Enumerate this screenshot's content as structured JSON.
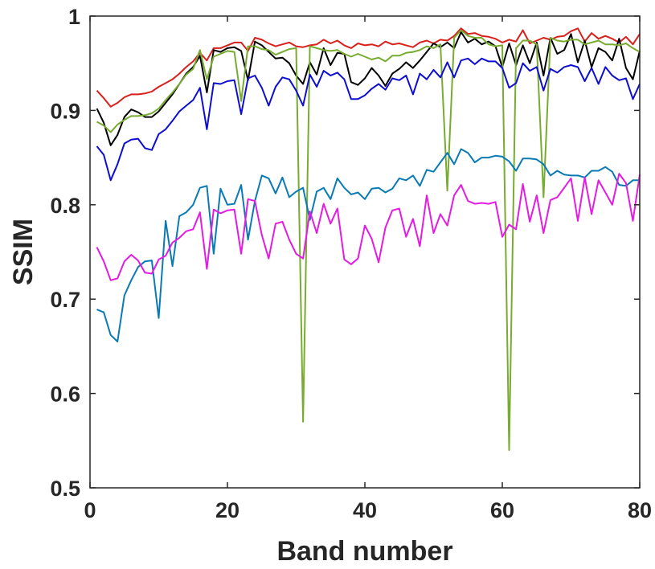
{
  "chart_data": {
    "type": "line",
    "title": "",
    "xlabel": "Band number",
    "ylabel": "SSIM",
    "xlim": [
      0,
      80
    ],
    "ylim": [
      0.5,
      1
    ],
    "xticks": [
      0,
      20,
      40,
      60,
      80
    ],
    "xtick_labels": [
      "0",
      "20",
      "40",
      "60",
      "80"
    ],
    "yticks": [
      0.5,
      0.6,
      0.7,
      0.8,
      0.9,
      1
    ],
    "ytick_labels": [
      "0.5",
      "0.6",
      "0.7",
      "0.8",
      "0.9",
      "1"
    ],
    "grid": false,
    "legend": "none",
    "x": [
      1,
      2,
      3,
      4,
      5,
      6,
      7,
      8,
      9,
      10,
      11,
      12,
      13,
      14,
      15,
      16,
      17,
      18,
      19,
      20,
      21,
      22,
      23,
      24,
      25,
      26,
      27,
      28,
      29,
      30,
      31,
      32,
      33,
      34,
      35,
      36,
      37,
      38,
      39,
      40,
      41,
      42,
      43,
      44,
      45,
      46,
      47,
      48,
      49,
      50,
      51,
      52,
      53,
      54,
      55,
      56,
      57,
      58,
      59,
      60,
      61,
      62,
      63,
      64,
      65,
      66,
      67,
      68,
      69,
      70,
      71,
      72,
      73,
      74,
      75,
      76,
      77,
      78,
      79,
      80
    ],
    "series": [
      {
        "color": "#d9211c",
        "values": [
          0.921,
          0.913,
          0.904,
          0.908,
          0.914,
          0.917,
          0.917,
          0.918,
          0.92,
          0.925,
          0.929,
          0.933,
          0.939,
          0.946,
          0.952,
          0.961,
          0.953,
          0.966,
          0.966,
          0.969,
          0.972,
          0.972,
          0.963,
          0.977,
          0.975,
          0.971,
          0.968,
          0.97,
          0.972,
          0.968,
          0.967,
          0.969,
          0.97,
          0.975,
          0.971,
          0.974,
          0.969,
          0.966,
          0.971,
          0.969,
          0.97,
          0.968,
          0.973,
          0.97,
          0.971,
          0.969,
          0.967,
          0.972,
          0.974,
          0.971,
          0.975,
          0.974,
          0.979,
          0.987,
          0.981,
          0.982,
          0.979,
          0.978,
          0.976,
          0.972,
          0.975,
          0.973,
          0.985,
          0.971,
          0.974,
          0.977,
          0.975,
          0.978,
          0.979,
          0.984,
          0.987,
          0.973,
          0.982,
          0.976,
          0.979,
          0.976,
          0.972,
          0.978,
          0.97,
          0.981
        ]
      },
      {
        "color": "#000000",
        "values": [
          0.902,
          0.887,
          0.863,
          0.874,
          0.893,
          0.901,
          0.898,
          0.893,
          0.893,
          0.899,
          0.908,
          0.917,
          0.928,
          0.939,
          0.946,
          0.958,
          0.919,
          0.964,
          0.962,
          0.966,
          0.967,
          0.963,
          0.932,
          0.973,
          0.969,
          0.962,
          0.955,
          0.956,
          0.95,
          0.937,
          0.928,
          0.951,
          0.938,
          0.966,
          0.948,
          0.961,
          0.96,
          0.93,
          0.927,
          0.934,
          0.945,
          0.937,
          0.926,
          0.939,
          0.944,
          0.951,
          0.945,
          0.953,
          0.962,
          0.971,
          0.967,
          0.972,
          0.966,
          0.983,
          0.972,
          0.976,
          0.97,
          0.973,
          0.968,
          0.946,
          0.971,
          0.948,
          0.969,
          0.95,
          0.972,
          0.937,
          0.977,
          0.96,
          0.964,
          0.981,
          0.951,
          0.974,
          0.946,
          0.966,
          0.962,
          0.953,
          0.976,
          0.945,
          0.933,
          0.963
        ]
      },
      {
        "color": "#77ac30",
        "values": [
          0.888,
          0.884,
          0.877,
          0.885,
          0.89,
          0.894,
          0.894,
          0.895,
          0.897,
          0.902,
          0.911,
          0.919,
          0.928,
          0.938,
          0.944,
          0.964,
          0.933,
          0.957,
          0.96,
          0.963,
          0.962,
          0.91,
          0.968,
          0.968,
          0.965,
          0.964,
          0.959,
          0.962,
          0.965,
          0.966,
          0.57,
          0.968,
          0.966,
          0.964,
          0.963,
          0.964,
          0.96,
          0.957,
          0.96,
          0.957,
          0.954,
          0.956,
          0.952,
          0.958,
          0.958,
          0.961,
          0.962,
          0.964,
          0.968,
          0.966,
          0.97,
          0.815,
          0.977,
          0.985,
          0.979,
          0.977,
          0.977,
          0.97,
          0.968,
          0.969,
          0.54,
          0.966,
          0.974,
          0.974,
          0.97,
          0.808,
          0.977,
          0.974,
          0.973,
          0.975,
          0.975,
          0.97,
          0.972,
          0.974,
          0.97,
          0.97,
          0.969,
          0.971,
          0.966,
          0.962
        ]
      },
      {
        "color": "#0e0ed0",
        "values": [
          0.862,
          0.853,
          0.826,
          0.843,
          0.865,
          0.869,
          0.87,
          0.86,
          0.858,
          0.875,
          0.88,
          0.889,
          0.899,
          0.905,
          0.911,
          0.924,
          0.88,
          0.929,
          0.928,
          0.931,
          0.932,
          0.896,
          0.934,
          0.937,
          0.924,
          0.905,
          0.925,
          0.935,
          0.933,
          0.921,
          0.905,
          0.938,
          0.925,
          0.942,
          0.937,
          0.94,
          0.933,
          0.912,
          0.912,
          0.916,
          0.923,
          0.928,
          0.922,
          0.934,
          0.932,
          0.937,
          0.917,
          0.939,
          0.933,
          0.943,
          0.935,
          0.951,
          0.935,
          0.953,
          0.955,
          0.949,
          0.955,
          0.952,
          0.952,
          0.945,
          0.924,
          0.929,
          0.95,
          0.942,
          0.946,
          0.921,
          0.944,
          0.94,
          0.946,
          0.948,
          0.946,
          0.931,
          0.945,
          0.928,
          0.946,
          0.937,
          0.932,
          0.934,
          0.912,
          0.928
        ]
      },
      {
        "color": "#0a7ab5",
        "values": [
          0.689,
          0.686,
          0.662,
          0.655,
          0.704,
          0.72,
          0.734,
          0.74,
          0.741,
          0.68,
          0.783,
          0.735,
          0.788,
          0.792,
          0.8,
          0.818,
          0.82,
          0.748,
          0.817,
          0.8,
          0.801,
          0.821,
          0.763,
          0.804,
          0.831,
          0.828,
          0.812,
          0.829,
          0.808,
          0.814,
          0.818,
          0.784,
          0.814,
          0.818,
          0.806,
          0.828,
          0.818,
          0.811,
          0.813,
          0.806,
          0.817,
          0.818,
          0.813,
          0.817,
          0.828,
          0.826,
          0.831,
          0.82,
          0.837,
          0.835,
          0.845,
          0.855,
          0.843,
          0.859,
          0.855,
          0.845,
          0.85,
          0.85,
          0.852,
          0.851,
          0.846,
          0.836,
          0.849,
          0.849,
          0.848,
          0.843,
          0.831,
          0.836,
          0.832,
          0.831,
          0.831,
          0.829,
          0.836,
          0.836,
          0.84,
          0.835,
          0.821,
          0.82,
          0.826,
          0.826
        ]
      },
      {
        "color": "#e31be3",
        "values": [
          0.755,
          0.74,
          0.72,
          0.722,
          0.74,
          0.747,
          0.741,
          0.728,
          0.727,
          0.742,
          0.746,
          0.76,
          0.765,
          0.772,
          0.774,
          0.792,
          0.732,
          0.795,
          0.791,
          0.794,
          0.795,
          0.748,
          0.806,
          0.804,
          0.768,
          0.743,
          0.78,
          0.782,
          0.763,
          0.748,
          0.743,
          0.793,
          0.77,
          0.801,
          0.78,
          0.796,
          0.742,
          0.737,
          0.743,
          0.778,
          0.764,
          0.739,
          0.776,
          0.794,
          0.796,
          0.766,
          0.785,
          0.756,
          0.81,
          0.77,
          0.79,
          0.778,
          0.81,
          0.821,
          0.804,
          0.801,
          0.802,
          0.801,
          0.803,
          0.766,
          0.779,
          0.774,
          0.822,
          0.782,
          0.81,
          0.77,
          0.805,
          0.808,
          0.818,
          0.828,
          0.783,
          0.829,
          0.79,
          0.826,
          0.813,
          0.8,
          0.833,
          0.823,
          0.783,
          0.832
        ]
      }
    ]
  }
}
